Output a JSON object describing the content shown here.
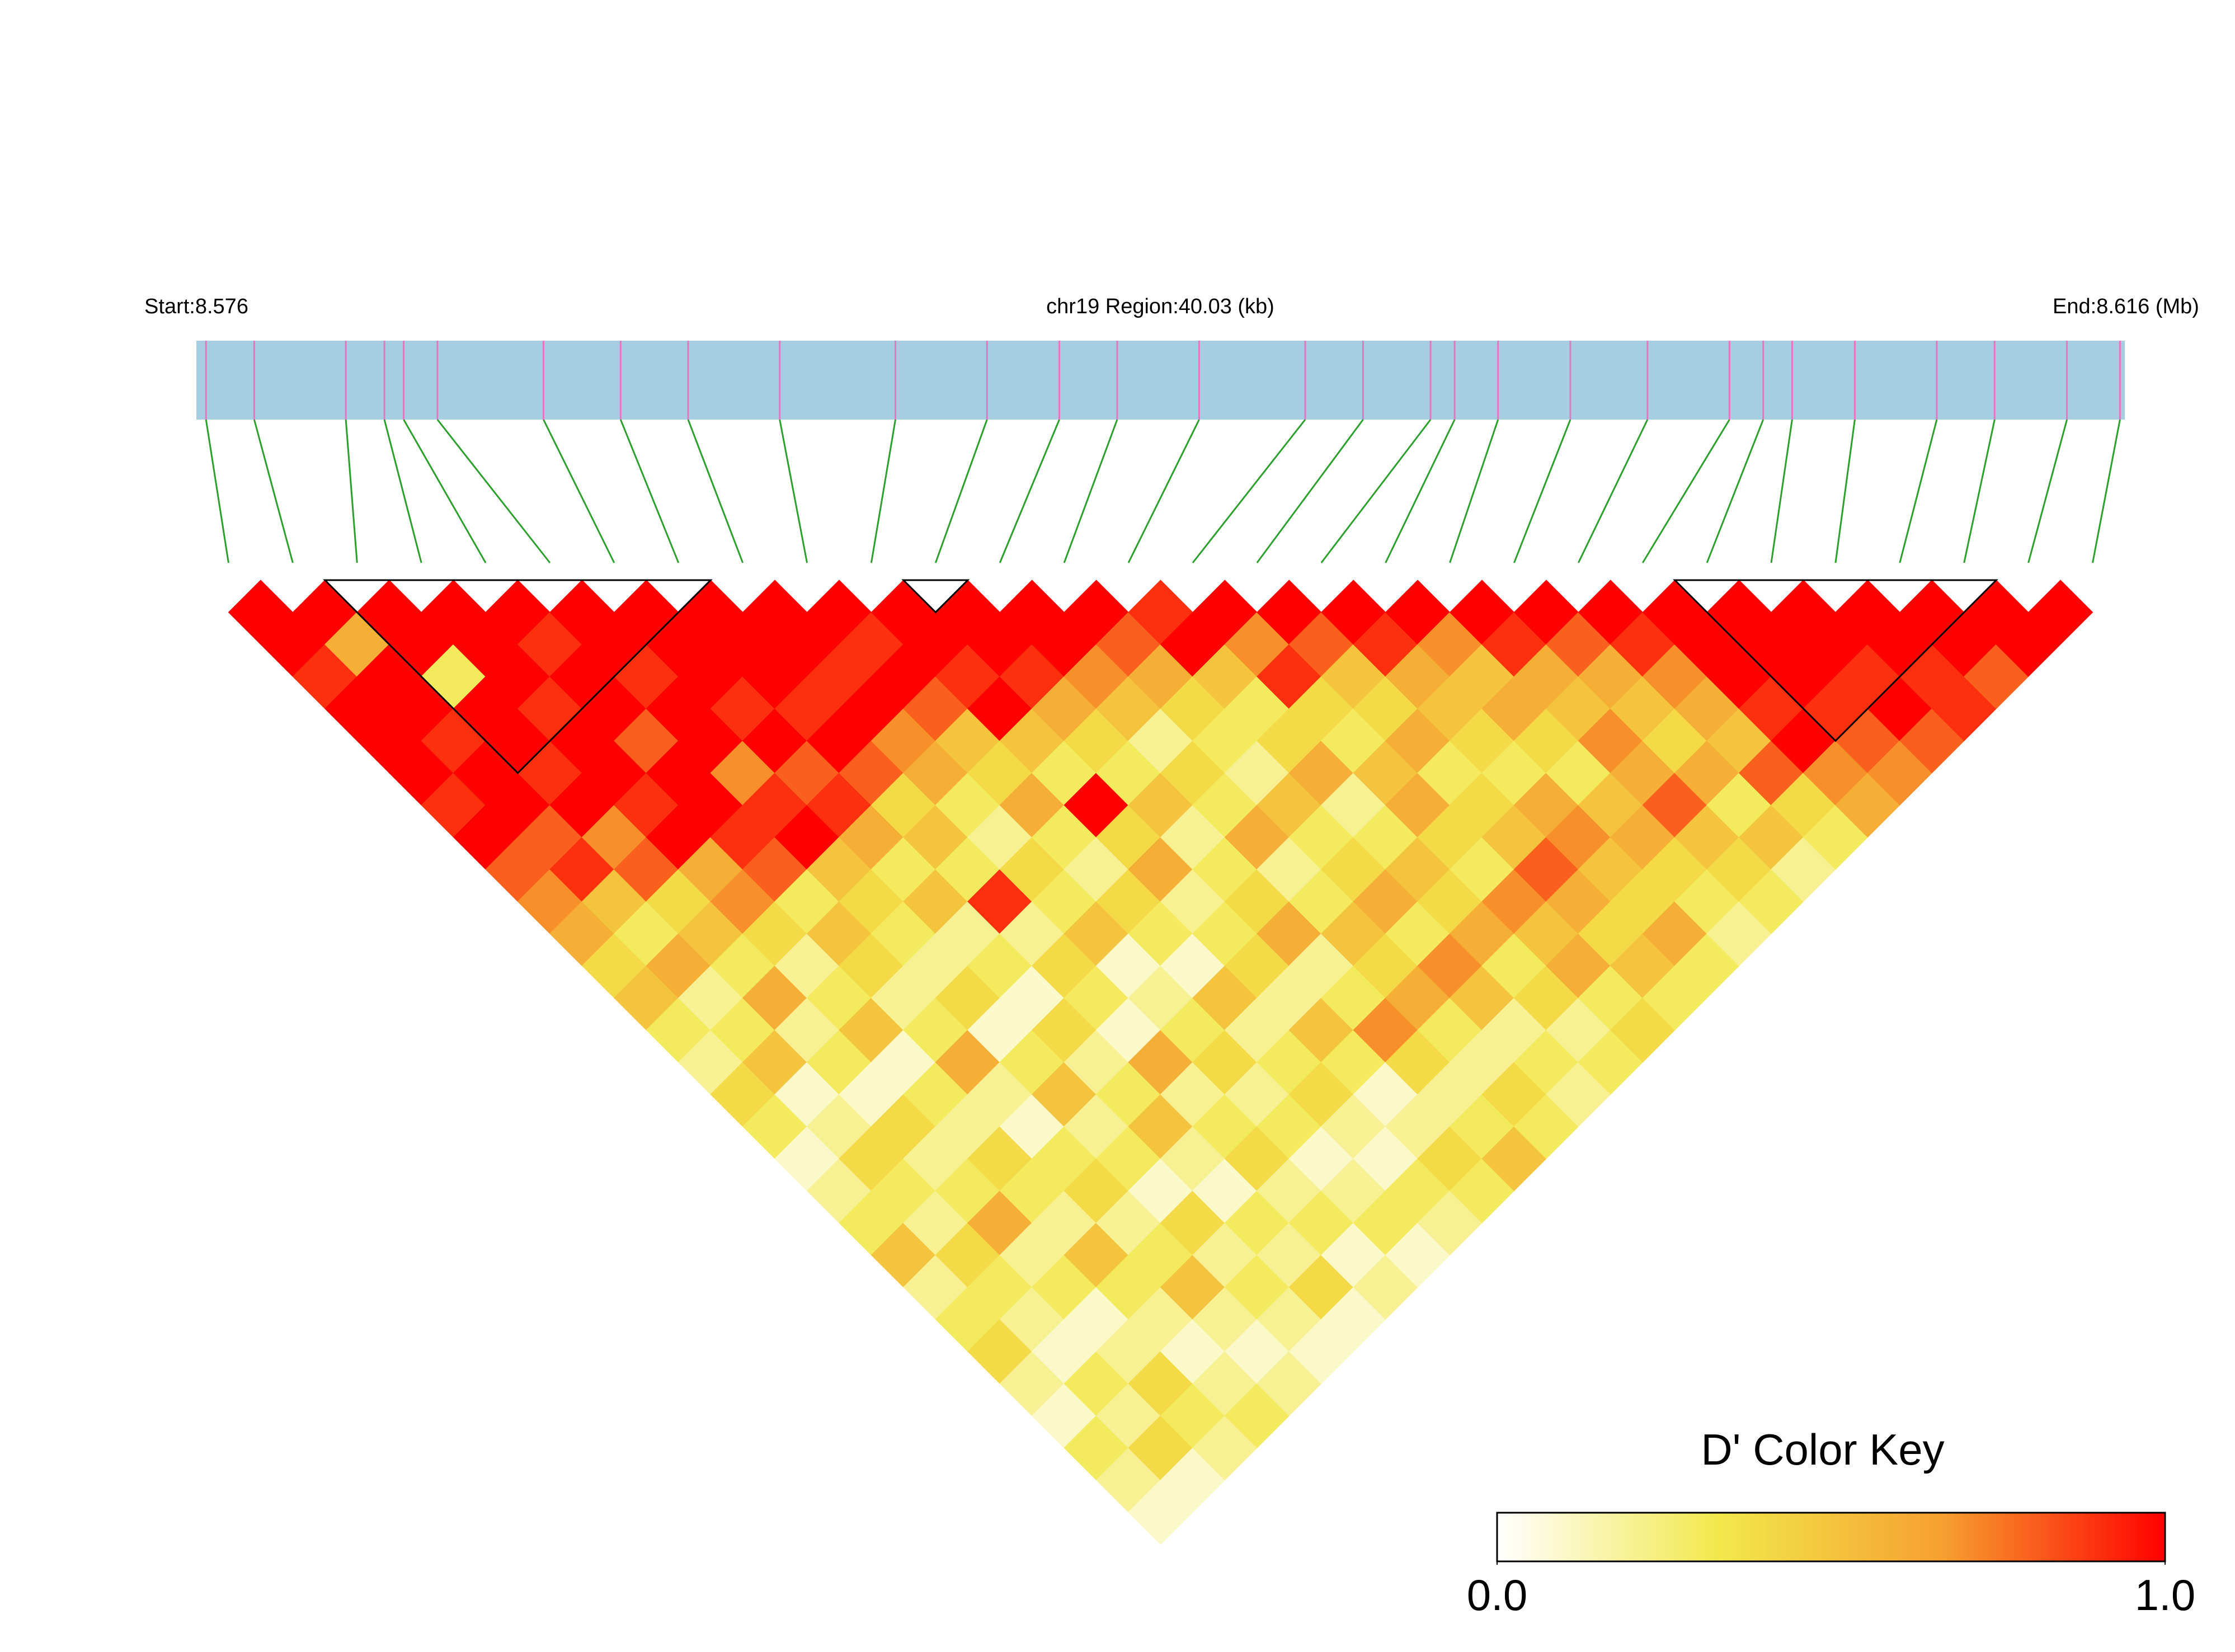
{
  "chart_data": {
    "type": "ld_heatmap",
    "start_label": "Start:8.576",
    "region_label": "chr19 Region:40.03 (kb)",
    "end_label": "End:8.616 (Mb)",
    "xlim": [
      8.576,
      8.616
    ],
    "positions": [
      8.5762,
      8.5772,
      8.5791,
      8.5799,
      8.5803,
      8.581,
      8.5832,
      8.5848,
      8.5862,
      8.5881,
      8.5905,
      8.5924,
      8.5939,
      8.5951,
      8.5968,
      8.599,
      8.6002,
      8.6016,
      8.6021,
      8.603,
      8.6045,
      8.6061,
      8.6078,
      8.6085,
      8.6091,
      8.6104,
      8.6121,
      8.6133,
      8.6148,
      8.6159
    ],
    "track_color": "#a6cee3",
    "snp_line_color": "#e377c2",
    "connector_color": "#2ca02c",
    "dprime": [
      [
        1,
        1,
        0.9,
        1,
        1,
        1,
        0.9,
        1,
        0.8,
        0.7,
        0.6,
        0.4,
        0.5,
        0.3,
        0.2,
        0.4,
        0.3,
        0.1,
        0.2,
        0.3,
        0.5,
        0.2,
        0.3,
        0.4,
        0.2,
        0.1,
        0.3,
        0.2,
        0.1
      ],
      [
        1,
        0.6,
        1,
        1,
        0.9,
        1,
        1,
        0.8,
        0.9,
        0.5,
        0.3,
        0.6,
        0.2,
        0.3,
        0.5,
        0.1,
        0.2,
        0.4,
        0.3,
        0.2,
        0.4,
        0.3,
        0.2,
        0.1,
        0.3,
        0.2,
        0.4,
        0.1
      ],
      [
        1,
        1,
        0.3,
        1,
        1,
        0.9,
        1,
        0.7,
        0.8,
        0.4,
        0.5,
        0.3,
        0.6,
        0.2,
        0.3,
        0.1,
        0.4,
        0.2,
        0.3,
        0.6,
        0.2,
        0.3,
        0.1,
        0.2,
        0.4,
        0.3,
        0.2
      ],
      [
        1,
        1,
        1,
        0.9,
        1,
        1,
        0.9,
        1,
        0.6,
        0.7,
        0.4,
        0.2,
        0.3,
        0.5,
        0.1,
        0.3,
        0.2,
        0.4,
        0.3,
        0.2,
        0.5,
        0.3,
        0.2,
        0.1,
        0.2,
        0.3
      ],
      [
        1,
        0.9,
        1,
        1,
        0.8,
        1,
        1,
        0.9,
        0.8,
        0.3,
        0.5,
        0.4,
        0.2,
        0.3,
        0.6,
        0.2,
        0.1,
        0.3,
        0.4,
        0.2,
        0.3,
        0.5,
        0.2,
        0.1,
        0.2
      ],
      [
        1,
        1,
        0.9,
        1,
        1,
        0.7,
        0.9,
        1,
        0.5,
        0.4,
        0.3,
        0.2,
        0.4,
        0.1,
        0.3,
        0.5,
        0.2,
        0.3,
        0.1,
        0.4,
        0.2,
        0.3,
        0.2,
        0.1
      ],
      [
        1,
        1,
        1,
        0.9,
        1,
        0.8,
        0.9,
        0.6,
        0.3,
        0.5,
        0.2,
        0.3,
        0.1,
        0.4,
        0.2,
        0.3,
        0.5,
        0.2,
        0.1,
        0.3,
        0.2,
        0.4,
        0.1
      ],
      [
        1,
        1,
        1,
        0.9,
        1,
        0.8,
        0.4,
        0.5,
        0.3,
        0.9,
        0.2,
        0.4,
        0.3,
        0.1,
        0.6,
        0.2,
        0.3,
        0.4,
        0.2,
        0.3,
        0.1,
        0.2
      ],
      [
        1,
        1,
        0.9,
        1,
        0.7,
        0.6,
        0.3,
        0.2,
        0.4,
        0.3,
        0.5,
        0.1,
        0.2,
        0.3,
        0.4,
        0.2,
        0.3,
        0.1,
        0.2,
        0.3,
        0.1
      ],
      [
        1,
        0.9,
        1,
        0.8,
        0.5,
        0.4,
        0.6,
        0.3,
        0.2,
        0.4,
        0.3,
        0.1,
        0.5,
        0.2,
        0.3,
        0.4,
        0.2,
        0.1,
        0.3,
        0.2
      ],
      [
        1,
        1,
        0.9,
        1,
        0.5,
        0.3,
        1,
        0.4,
        0.6,
        0.2,
        0.3,
        0.4,
        0.2,
        0.5,
        0.3,
        0.1,
        0.2,
        0.4,
        0.3
      ],
      [
        1,
        1,
        0.9,
        0.6,
        0.4,
        0.3,
        0.5,
        0.2,
        0.3,
        0.4,
        0.6,
        0.2,
        0.3,
        0.7,
        0.4,
        0.2,
        0.3,
        0.5
      ],
      [
        1,
        1,
        0.7,
        0.5,
        0.2,
        0.4,
        0.3,
        0.6,
        0.2,
        0.3,
        0.5,
        0.4,
        0.6,
        0.3,
        0.2,
        0.4,
        0.3
      ],
      [
        1,
        0.8,
        0.6,
        0.4,
        0.3,
        0.2,
        0.5,
        0.3,
        0.4,
        0.6,
        0.3,
        0.7,
        0.5,
        0.2,
        0.3,
        0.2
      ],
      [
        0.9,
        1,
        0.5,
        0.3,
        0.4,
        0.6,
        0.2,
        0.3,
        0.5,
        0.4,
        0.6,
        0.3,
        0.4,
        0.2,
        0.3
      ],
      [
        1,
        0.7,
        0.9,
        0.4,
        0.3,
        0.5,
        0.6,
        0.4,
        0.3,
        0.7,
        0.5,
        0.6,
        0.3,
        0.4
      ],
      [
        1,
        0.8,
        0.5,
        0.4,
        0.6,
        0.3,
        0.4,
        0.5,
        0.8,
        0.6,
        0.4,
        0.5,
        0.3
      ],
      [
        1,
        0.9,
        0.6,
        0.5,
        0.4,
        0.3,
        0.6,
        0.7,
        0.5,
        0.4,
        0.6,
        0.3
      ],
      [
        1,
        0.7,
        0.5,
        0.6,
        0.4,
        0.3,
        0.5,
        0.6,
        0.4,
        0.3,
        0.2
      ],
      [
        1,
        0.9,
        0.6,
        0.5,
        0.7,
        0.6,
        0.8,
        0.5,
        0.4,
        0.3
      ],
      [
        1,
        0.8,
        0.6,
        0.5,
        0.4,
        0.6,
        0.3,
        0.5,
        0.2
      ],
      [
        1,
        0.9,
        0.7,
        0.6,
        0.5,
        0.8,
        0.4,
        0.3
      ],
      [
        1,
        1,
        1,
        0.9,
        1,
        0.7,
        0.6
      ],
      [
        1,
        1,
        1,
        0.9,
        0.8,
        0.7
      ],
      [
        1,
        1,
        0.9,
        1,
        0.8
      ],
      [
        1,
        1,
        0.9,
        0.9
      ],
      [
        1,
        1,
        0.8
      ],
      [
        1,
        1
      ],
      [
        1
      ]
    ],
    "blocks": [
      [
        1,
        8
      ],
      [
        10,
        12
      ],
      [
        22,
        28
      ]
    ],
    "colors": [
      "#ffffff",
      "#f2e84c",
      "#f6a030",
      "#ff0000"
    ],
    "color_key_title": "D' Color Key",
    "clim": [
      0,
      1
    ],
    "cticks": [
      {
        "value": 0,
        "label": "0.0"
      },
      {
        "value": 1,
        "label": "1.0"
      }
    ]
  }
}
